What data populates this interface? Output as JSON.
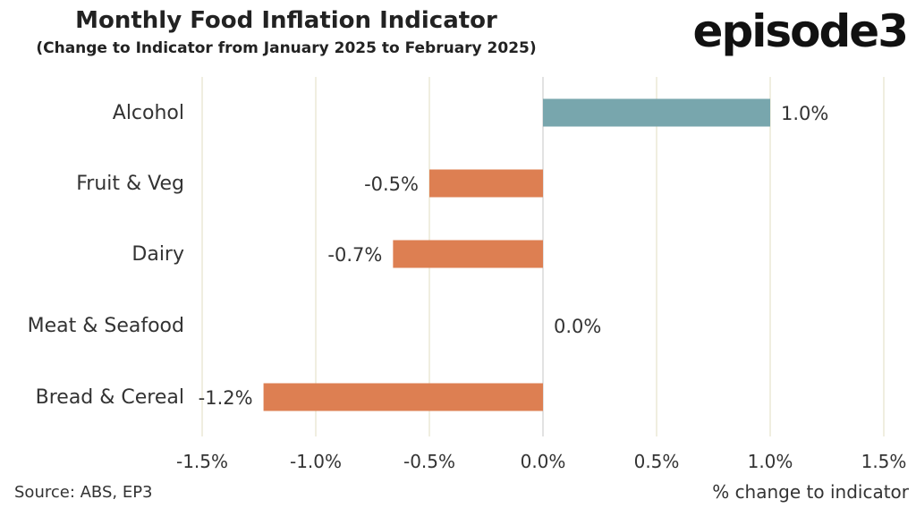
{
  "brand": "episode3",
  "source": "Source: ABS, EP3",
  "chart_data": {
    "type": "bar",
    "orientation": "horizontal",
    "title": "Monthly Food Inflation Indicator",
    "subtitle": "(Change to Indicator from January 2025 to February 2025)",
    "xlabel": "% change to indicator",
    "ylabel": "",
    "categories": [
      "Alcohol",
      "Fruit & Veg",
      "Dairy",
      "Meat & Seafood",
      "Bread & Cereal"
    ],
    "values": [
      1.0,
      -0.5,
      -0.7,
      0.0,
      -1.2
    ],
    "bar_values": [
      1.0,
      -0.5,
      -0.66,
      0.0,
      -1.23
    ],
    "data_labels": [
      "1.0%",
      "-0.5%",
      "-0.7%",
      "0.0%",
      "-1.2%"
    ],
    "xlim": [
      -1.5,
      1.5
    ],
    "xticks": [
      -1.5,
      -1.0,
      -0.5,
      0.0,
      0.5,
      1.0,
      1.5
    ],
    "xtick_labels": [
      "-1.5%",
      "-1.0%",
      "-0.5%",
      "0.0%",
      "0.5%",
      "1.0%",
      "1.5%"
    ],
    "grid": true,
    "colors": {
      "positive": "#78a6ad",
      "negative": "#dd7f52",
      "grid": "#ece9d6"
    }
  }
}
